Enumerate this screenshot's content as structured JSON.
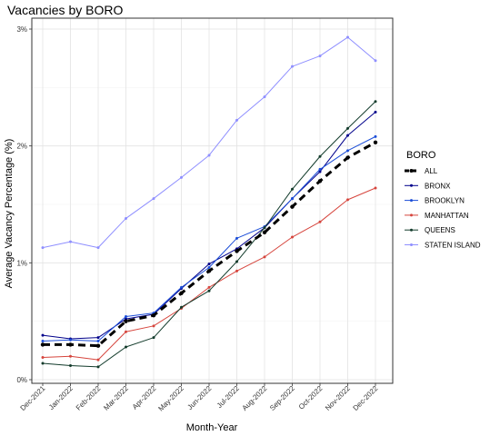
{
  "chart_data": {
    "type": "line",
    "title": "Vacancies by BORO",
    "xlabel": "Month-Year",
    "ylabel": "Average Vacancy Percentage (%)",
    "categories": [
      "Dec-2021",
      "Jan-2022",
      "Feb-2022",
      "Mar-2022",
      "Apr-2022",
      "May-2022",
      "Jun-2022",
      "Jul-2022",
      "Aug-2022",
      "Sep-2022",
      "Oct-2022",
      "Nov-2022",
      "Dec-2022"
    ],
    "ylim": [
      0,
      3
    ],
    "yticks": [
      0,
      1,
      2,
      3
    ],
    "ytick_labels": [
      "0%",
      "1%",
      "2%",
      "3%"
    ],
    "grid": true,
    "legend": {
      "title": "BORO",
      "position": "right"
    },
    "series": [
      {
        "name": "ALL",
        "color": "#000000",
        "dashed": true,
        "values": [
          0.3,
          0.3,
          0.29,
          0.5,
          0.55,
          0.74,
          0.93,
          1.1,
          1.26,
          1.48,
          1.7,
          1.9,
          2.03
        ]
      },
      {
        "name": "BRONX",
        "color": "#00008b",
        "dashed": false,
        "values": [
          0.38,
          0.35,
          0.36,
          0.52,
          0.56,
          0.78,
          0.99,
          1.12,
          1.3,
          1.55,
          1.78,
          2.09,
          2.29
        ]
      },
      {
        "name": "BROOKLYN",
        "color": "#1c4ed8",
        "dashed": false,
        "values": [
          0.33,
          0.34,
          0.33,
          0.54,
          0.57,
          0.79,
          0.96,
          1.21,
          1.31,
          1.55,
          1.8,
          1.96,
          2.08
        ]
      },
      {
        "name": "MANHATTAN",
        "color": "#d6453d",
        "dashed": false,
        "values": [
          0.19,
          0.2,
          0.17,
          0.41,
          0.46,
          0.61,
          0.79,
          0.93,
          1.05,
          1.22,
          1.35,
          1.54,
          1.64
        ]
      },
      {
        "name": "QUEENS",
        "color": "#123b2b",
        "dashed": false,
        "values": [
          0.14,
          0.12,
          0.11,
          0.28,
          0.36,
          0.62,
          0.76,
          1.01,
          1.3,
          1.63,
          1.91,
          2.15,
          2.38
        ]
      },
      {
        "name": "STATEN ISLAND",
        "color": "#8f8fff",
        "dashed": false,
        "values": [
          1.13,
          1.18,
          1.13,
          1.38,
          1.55,
          1.73,
          1.92,
          2.22,
          2.42,
          2.68,
          2.77,
          2.93,
          2.73
        ]
      }
    ]
  }
}
